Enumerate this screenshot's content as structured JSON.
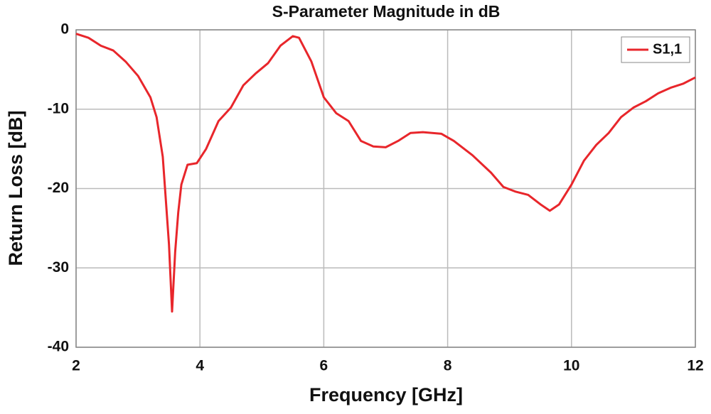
{
  "chart_data": {
    "type": "line",
    "title": "S-Parameter Magnitude in dB",
    "x_label": "Frequency [GHz]",
    "y_label": "Return Loss [dB]",
    "x": [
      2.0,
      2.2,
      2.4,
      2.6,
      2.8,
      3.0,
      3.2,
      3.3,
      3.4,
      3.5,
      3.55,
      3.6,
      3.65,
      3.7,
      3.8,
      3.95,
      4.1,
      4.3,
      4.5,
      4.7,
      4.9,
      5.1,
      5.3,
      5.5,
      5.6,
      5.8,
      6.0,
      6.2,
      6.4,
      6.6,
      6.8,
      7.0,
      7.2,
      7.4,
      7.6,
      7.9,
      8.1,
      8.4,
      8.7,
      8.9,
      9.1,
      9.3,
      9.5,
      9.65,
      9.8,
      10.0,
      10.2,
      10.4,
      10.6,
      10.8,
      11.0,
      11.2,
      11.4,
      11.6,
      11.8,
      12.0
    ],
    "series": [
      {
        "name": "S1,1",
        "color": "#e8262b",
        "values": [
          -0.5,
          -1,
          -2,
          -2.6,
          -4,
          -5.8,
          -8.5,
          -11,
          -16,
          -27,
          -35.5,
          -28,
          -23,
          -19.5,
          -17,
          -16.8,
          -15,
          -11.5,
          -9.8,
          -7,
          -5.5,
          -4.2,
          -2,
          -0.8,
          -1,
          -4,
          -8.5,
          -10.5,
          -11.5,
          -14,
          -14.7,
          -14.8,
          -14,
          -13,
          -12.9,
          -13.1,
          -14,
          -15.8,
          -18,
          -19.8,
          -20.4,
          -20.8,
          -22,
          -22.8,
          -22,
          -19.5,
          -16.5,
          -14.5,
          -13,
          -11,
          -9.8,
          -9,
          -8,
          -7.3,
          -6.8,
          -6
        ]
      }
    ],
    "xlim": [
      2,
      12
    ],
    "xticks": [
      2,
      4,
      6,
      8,
      10,
      12
    ],
    "ylim": [
      -40,
      0
    ],
    "yticks": [
      -40,
      -30,
      -20,
      -10,
      0
    ],
    "grid": true,
    "legend": "upper right"
  }
}
